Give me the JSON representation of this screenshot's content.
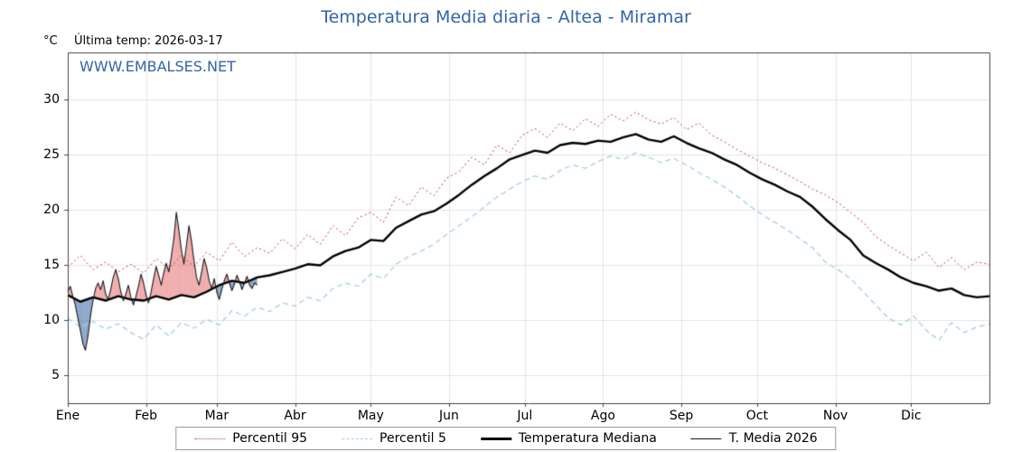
{
  "header": {
    "title": "Temperatura Media diaria - Altea - Miramar",
    "unit": "°C",
    "last_temp": "Última temp: 2026-03-17",
    "watermark": "WWW.EMBALSES.NET",
    "title_color": "#3465a4"
  },
  "legend": {
    "items": [
      {
        "label": "Percentil 95"
      },
      {
        "label": "Percentil 5"
      },
      {
        "label": "Temperatura Mediana"
      },
      {
        "label": "T. Media 2026"
      }
    ]
  },
  "chart_data": {
    "type": "line",
    "title": "Temperatura Media diaria - Altea - Miramar",
    "ylabel": "°C",
    "ylim": [
      2.5,
      34.3
    ],
    "yticks": [
      5,
      10,
      15,
      20,
      25,
      30
    ],
    "days_per_year": 365,
    "grid": true,
    "grid_color": "#e3e3e3",
    "border_color": "#444444",
    "legend_position": "bottom",
    "x_months": {
      "labels": [
        "Ene",
        "Feb",
        "Mar",
        "Abr",
        "May",
        "Jun",
        "Jul",
        "Ago",
        "Sep",
        "Oct",
        "Nov",
        "Dic"
      ],
      "start_days": [
        0,
        31,
        59,
        90,
        120,
        151,
        181,
        212,
        243,
        273,
        304,
        334
      ]
    },
    "series": [
      {
        "name": "Percentil 95",
        "color": "#cc3b3b",
        "dash": "dotted",
        "width": 1,
        "step": 5,
        "values": [
          14.8,
          15.9,
          14.6,
          15.3,
          14.4,
          15.1,
          14.3,
          15.6,
          14.7,
          15.9,
          14.9,
          16.2,
          15.4,
          17.1,
          15.8,
          16.6,
          16.1,
          17.4,
          16.5,
          17.8,
          16.9,
          18.6,
          17.7,
          19.3,
          19.8,
          18.9,
          21.2,
          20.4,
          22.1,
          21.3,
          22.9,
          23.5,
          24.8,
          24.1,
          25.9,
          25.2,
          26.8,
          27.4,
          26.6,
          27.9,
          27.2,
          28.3,
          27.6,
          28.7,
          28.1,
          28.9,
          28.2,
          27.8,
          28.4,
          27.3,
          27.9,
          26.8,
          26.2,
          25.5,
          24.9,
          24.3,
          23.8,
          23.2,
          22.6,
          21.9,
          21.4,
          20.7,
          19.8,
          18.9,
          17.6,
          16.8,
          16.1,
          15.4,
          16.2,
          14.8,
          15.7,
          14.6,
          15.3,
          15.1
        ]
      },
      {
        "name": "Percentil 5",
        "color": "#a5cfe3",
        "dash": "dashed",
        "width": 1.3,
        "step": 5,
        "values": [
          10.2,
          9.4,
          9.9,
          9.2,
          9.7,
          8.9,
          8.3,
          9.6,
          8.6,
          9.8,
          9.3,
          10.1,
          9.6,
          10.9,
          10.4,
          11.2,
          10.8,
          11.6,
          11.3,
          12.1,
          11.8,
          12.9,
          13.4,
          13.1,
          14.2,
          13.8,
          15.1,
          15.8,
          16.3,
          16.9,
          17.8,
          18.6,
          19.4,
          20.3,
          21.2,
          21.9,
          22.6,
          23.1,
          22.8,
          23.6,
          24.1,
          23.8,
          24.4,
          24.9,
          24.6,
          25.2,
          24.8,
          24.3,
          24.7,
          24.1,
          23.4,
          22.8,
          22.1,
          21.3,
          20.4,
          19.6,
          18.9,
          18.2,
          17.4,
          16.6,
          15.3,
          14.6,
          13.8,
          12.6,
          11.4,
          10.2,
          9.6,
          10.4,
          9.1,
          8.2,
          9.8,
          8.9,
          9.4,
          9.7
        ]
      },
      {
        "name": "Temperatura Mediana",
        "color": "#000000",
        "dash": "solid",
        "width": 2.4,
        "step": 5,
        "values": [
          12.3,
          11.7,
          12.1,
          11.8,
          12.2,
          11.9,
          11.8,
          12.2,
          11.9,
          12.3,
          12.1,
          12.6,
          13.2,
          13.6,
          13.4,
          13.9,
          14.1,
          14.4,
          14.7,
          15.1,
          15.0,
          15.8,
          16.3,
          16.6,
          17.3,
          17.2,
          18.4,
          19.0,
          19.6,
          19.9,
          20.6,
          21.4,
          22.3,
          23.1,
          23.8,
          24.6,
          25.0,
          25.4,
          25.2,
          25.9,
          26.1,
          26.0,
          26.3,
          26.2,
          26.6,
          26.9,
          26.4,
          26.2,
          26.7,
          26.1,
          25.6,
          25.2,
          24.6,
          24.1,
          23.4,
          22.8,
          22.3,
          21.7,
          21.2,
          20.3,
          19.2,
          18.2,
          17.3,
          15.9,
          15.2,
          14.6,
          13.9,
          13.4,
          13.1,
          12.7,
          12.9,
          12.3,
          12.1,
          12.2
        ]
      },
      {
        "name": "T. Media 2026",
        "color": "#1a1a1a",
        "dash": "solid",
        "width": 1.1,
        "step": 1,
        "fill_vs": "Temperatura Mediana",
        "fill_above": "rgba(228,106,106,0.55)",
        "fill_below": "rgba(78,118,173,0.65)",
        "values": [
          12.6,
          13.1,
          12.2,
          11.4,
          10.2,
          9.1,
          7.9,
          7.3,
          8.6,
          10.4,
          11.8,
          12.9,
          13.4,
          12.8,
          13.6,
          12.4,
          11.9,
          12.8,
          13.9,
          14.6,
          13.8,
          12.6,
          11.8,
          12.4,
          13.2,
          12.1,
          11.4,
          12.2,
          13.1,
          14.2,
          13.4,
          12.3,
          11.6,
          12.6,
          13.8,
          14.9,
          14.1,
          13.2,
          14.3,
          15.2,
          14.4,
          15.8,
          17.4,
          19.8,
          18.2,
          16.4,
          15.1,
          16.8,
          18.6,
          17.2,
          15.4,
          13.9,
          13.2,
          14.4,
          15.6,
          14.8,
          13.6,
          12.9,
          13.8,
          12.6,
          11.9,
          12.8,
          13.6,
          14.2,
          13.4,
          12.7,
          13.3,
          14.1,
          13.5,
          12.8,
          13.4,
          14.0,
          13.2,
          12.9,
          13.4,
          13.2
        ]
      }
    ]
  }
}
